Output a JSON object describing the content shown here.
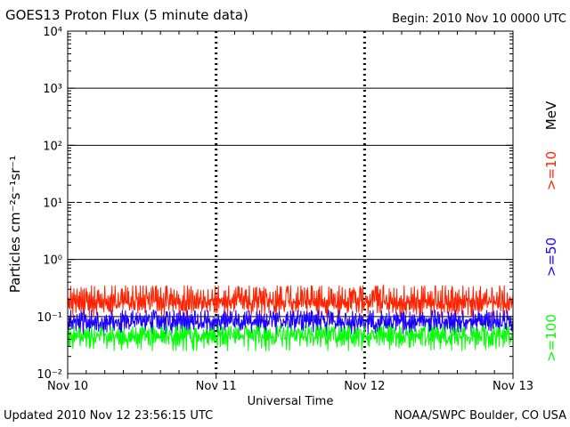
{
  "header": {
    "title": "GOES13 Proton Flux (5 minute data)",
    "begin": "Begin: 2010 Nov 10 0000 UTC"
  },
  "footer": {
    "updated": "Updated 2010 Nov 12 23:56:15 UTC",
    "credit": "NOAA/SWPC Boulder, CO USA"
  },
  "chart_data": {
    "type": "line",
    "title": "GOES13 Proton Flux (5 minute data)",
    "xlabel": "Universal Time",
    "ylabel": "Particles cm⁻²s⁻¹sr⁻¹",
    "x_ticks": [
      "Nov 10",
      "Nov 11",
      "Nov 12",
      "Nov 13"
    ],
    "y_ticks": [
      "10⁻²",
      "10⁻¹",
      "10⁰",
      "10¹",
      "10²",
      "10³",
      "10⁴"
    ],
    "y_scale": "log",
    "ylim": [
      0.01,
      10000
    ],
    "xlim_days": [
      0,
      3
    ],
    "grid": true,
    "dashed_levels": [
      10
    ],
    "legend_units": "MeV",
    "series": [
      {
        "name": ">=10",
        "color": "#ff2200",
        "baseline": 0.14,
        "range": [
          0.09,
          0.35
        ],
        "values_sample": [
          0.15,
          0.2,
          0.13,
          0.25,
          0.12,
          0.18,
          0.3,
          0.14,
          0.16,
          0.22,
          0.13,
          0.19,
          0.35,
          0.15,
          0.17,
          0.21,
          0.14,
          0.18,
          0.25,
          0.16
        ]
      },
      {
        "name": ">=50",
        "color": "#1a00ff",
        "baseline": 0.07,
        "range": [
          0.045,
          0.13
        ],
        "values_sample": [
          0.07,
          0.09,
          0.06,
          0.1,
          0.065,
          0.08,
          0.12,
          0.07,
          0.075,
          0.095,
          0.06,
          0.085,
          0.11,
          0.07,
          0.08,
          0.09,
          0.065,
          0.08,
          0.1,
          0.075
        ]
      },
      {
        "name": ">=100",
        "color": "#00ff00",
        "baseline": 0.04,
        "range": [
          0.025,
          0.07
        ],
        "values_sample": [
          0.04,
          0.05,
          0.035,
          0.06,
          0.03,
          0.045,
          0.065,
          0.04,
          0.05,
          0.055,
          0.03,
          0.045,
          0.06,
          0.04,
          0.045,
          0.05,
          0.035,
          0.045,
          0.055,
          0.04
        ]
      }
    ]
  }
}
